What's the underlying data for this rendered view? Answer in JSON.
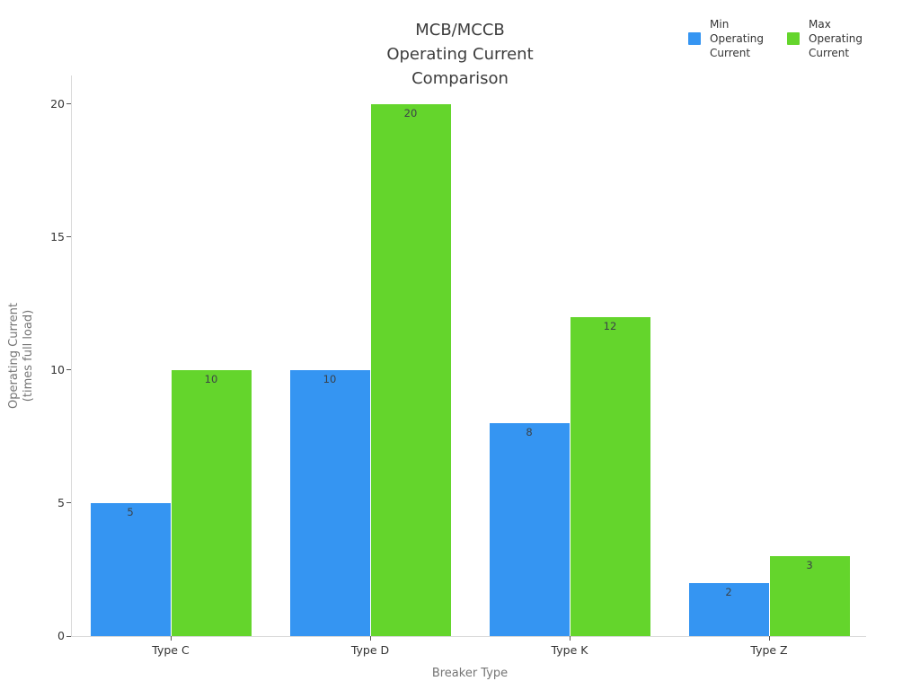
{
  "chart_data": {
    "type": "bar",
    "title": "MCB/MCCB\nOperating Current\nComparison",
    "xlabel": "Breaker Type",
    "ylabel": "Operating Current\n(times full load)",
    "categories": [
      "Type C",
      "Type D",
      "Type K",
      "Type Z"
    ],
    "series": [
      {
        "name": "Min Operating Current",
        "color": "#3595f2",
        "values": [
          5,
          10,
          8,
          2
        ]
      },
      {
        "name": "Max Operating Current",
        "color": "#64d52c",
        "values": [
          10,
          20,
          12,
          3
        ]
      }
    ],
    "ylim": [
      0,
      20
    ],
    "y_ticks": [
      0,
      5,
      10,
      15,
      20
    ],
    "grid": false,
    "legend_position": "top-right",
    "bar_value_labels": [
      [
        5,
        10,
        8,
        2
      ],
      [
        10,
        20,
        12,
        3
      ]
    ],
    "colors": {
      "min_series": "#3595f2",
      "max_series": "#64d52c",
      "axis_line": "#d9d9d9",
      "tick_label": "#333333",
      "axis_title": "#757575",
      "title_text": "#3d3d3d",
      "bar_label": "#3b4248"
    }
  }
}
